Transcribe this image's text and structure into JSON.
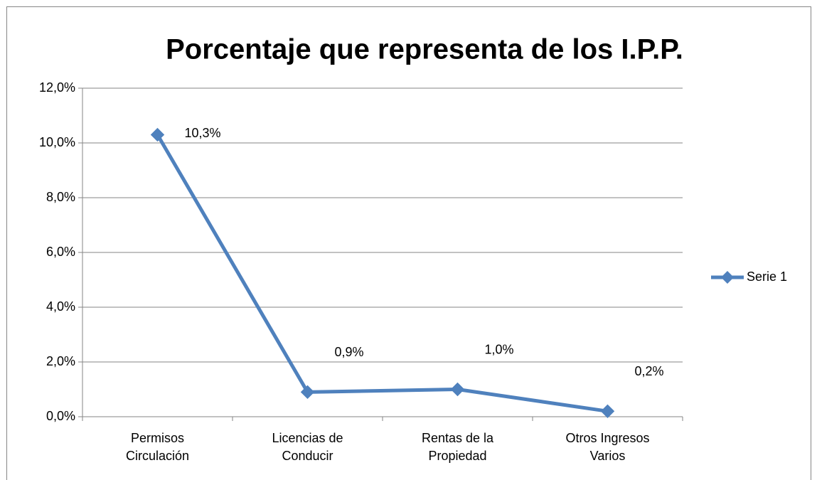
{
  "chart_data": {
    "type": "line",
    "title": "Porcentaje que representa de los I.P.P.",
    "categories": [
      "Permisos Circulación",
      "Licencias de Conducir",
      "Rentas de la Propiedad",
      "Otros Ingresos Varios"
    ],
    "series": [
      {
        "name": "Serie 1",
        "color": "#4f81bd",
        "values": [
          10.3,
          0.9,
          1.0,
          0.2
        ],
        "value_labels": [
          "10,3%",
          "0,9%",
          "1,0%",
          "0,2%"
        ]
      }
    ],
    "ylim": [
      0,
      12
    ],
    "yticks": [
      {
        "value": 0,
        "label": "0,0%"
      },
      {
        "value": 2,
        "label": "2,0%"
      },
      {
        "value": 4,
        "label": "4,0%"
      },
      {
        "value": 6,
        "label": "6,0%"
      },
      {
        "value": 8,
        "label": "8,0%"
      },
      {
        "value": 10,
        "label": "10,0%"
      },
      {
        "value": 12,
        "label": "12,0%"
      }
    ],
    "grid": true,
    "legend": "right"
  }
}
